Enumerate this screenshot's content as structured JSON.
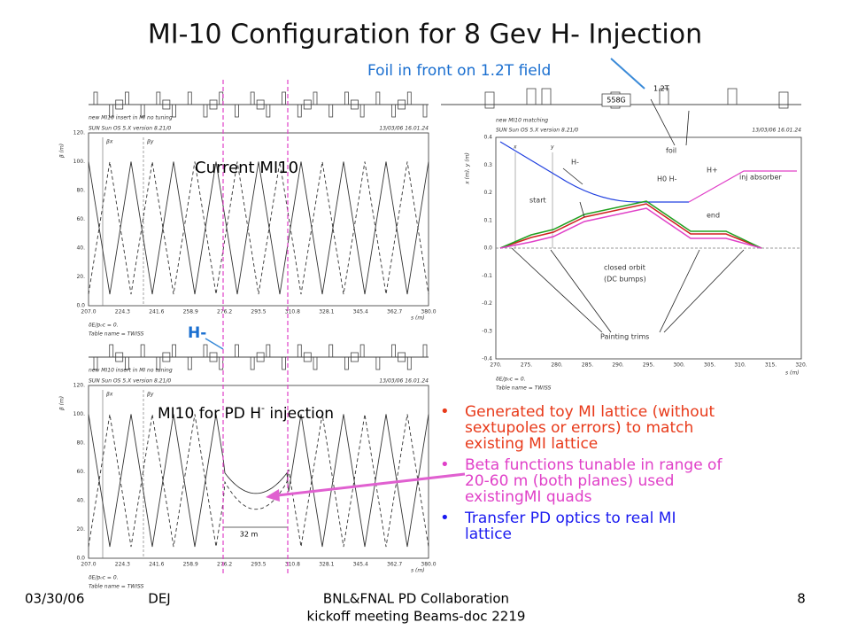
{
  "title": "MI-10 Configuration for 8 Gev H- Injection",
  "foil_note": "Foil in front on 1.2T field",
  "plot_top": {
    "header": [
      "new MI10 insert in MI no tuning",
      "SUN Sun OS 5.X version 8.21/0"
    ],
    "date": "13/03/06  16.01.24",
    "ylabel": "β (m)",
    "xlabel": "s (m)",
    "legend": [
      "βx",
      "βy"
    ],
    "yticks": [
      "0.0",
      "20.",
      "40.",
      "60.",
      "80.",
      "100.",
      "120."
    ],
    "xticks": [
      "207.0",
      "224.3",
      "241.6",
      "258.9",
      "276.2",
      "293.5",
      "310.8",
      "328.1",
      "345.4",
      "362.7",
      "380.0"
    ],
    "footer": [
      "δE/p₀c = 0.",
      "Table name = TWISS"
    ],
    "label": "Current MI10"
  },
  "plot_bottom": {
    "header": [
      "new MI10 insert in MI no tuning",
      "SUN Sun OS 5.X version 8.21/0"
    ],
    "date": "13/03/06  16.01.24",
    "ylabel": "β (m)",
    "xlabel": "s (m)",
    "legend": [
      "βx",
      "βy"
    ],
    "yticks": [
      "0.0",
      "20.",
      "40.",
      "60.",
      "80.",
      "100.",
      "120."
    ],
    "xticks": [
      "207.0",
      "224.3",
      "241.6",
      "258.9",
      "276.2",
      "293.5",
      "310.8",
      "328.1",
      "345.4",
      "362.7",
      "380.0"
    ],
    "footer": [
      "δE/p₀c = 0.",
      "Table name = TWISS"
    ],
    "label": "MI10 for PD H",
    "label_sup": "-",
    "label_end": " injection",
    "span": "32 m",
    "marker": "H-"
  },
  "plot_right": {
    "header": [
      "new MI10 matching",
      "SUN Sun OS 5.X version 8.21/0"
    ],
    "date": "13/03/06  16.01.24",
    "ylabel": "x (m), y (m)",
    "xlabel": "s (m)",
    "legend": [
      "x",
      "y"
    ],
    "yticks": [
      "0.4",
      "0.3",
      "0.2",
      "0.1",
      "0.0",
      "-0.1",
      "-0.2",
      "-0.3",
      "-0.4"
    ],
    "xticks": [
      "270.",
      "275.",
      "280.",
      "285.",
      "290.",
      "295.",
      "300.",
      "305.",
      "310.",
      "315.",
      "320."
    ],
    "footer": [
      "δE/p₀c = 0.",
      "Table name = TWISS"
    ],
    "magnet": "558G",
    "field": "1.2T",
    "foil": "foil",
    "h_minus": "H-",
    "h_zero": "H0 H-",
    "h_plus": "H+",
    "absorber": "inj absorber",
    "start": "start",
    "end": "end",
    "closed_orbit": [
      "closed orbit",
      "(DC bumps)"
    ],
    "trims": "Painting trims"
  },
  "bullets": [
    {
      "text": [
        "Generated toy MI lattice (without",
        "sextupoles or errors) to match",
        "existing MI lattice"
      ],
      "color": "#e83a1a"
    },
    {
      "text": [
        "Beta functions tunable in range of",
        "20-60 m (both planes) used",
        "existingMI quads"
      ],
      "color": "#e040c8"
    },
    {
      "text": [
        "Transfer PD optics to real MI",
        "lattice"
      ],
      "color": "#1a1af0"
    }
  ],
  "footer": {
    "date": "03/30/06",
    "author": "DEJ",
    "center": [
      "BNL&FNAL PD Collaboration",
      "kickoff meeting Beams-doc 2219"
    ],
    "page": "8"
  }
}
